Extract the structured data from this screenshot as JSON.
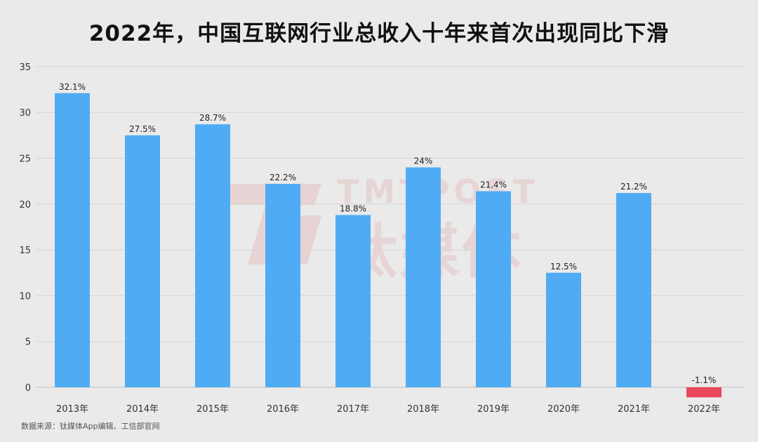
{
  "chart_data": {
    "type": "bar",
    "title": "2022年，中国互联网行业总收入十年来首次出现同比下滑",
    "categories": [
      "2013年",
      "2014年",
      "2015年",
      "2016年",
      "2017年",
      "2018年",
      "2019年",
      "2020年",
      "2021年",
      "2022年"
    ],
    "values": [
      32.1,
      27.5,
      28.7,
      22.2,
      18.8,
      24,
      21.4,
      12.5,
      21.2,
      -1.1
    ],
    "data_labels": [
      "32.1%",
      "27.5%",
      "28.7%",
      "22.2%",
      "18.8%",
      "24%",
      "21.4%",
      "12.5%",
      "21.2%",
      "-1.1%"
    ],
    "xlabel": "",
    "ylabel": "",
    "ylim": [
      0,
      35
    ],
    "yticks": [
      0,
      5,
      10,
      15,
      20,
      25,
      30,
      35
    ],
    "grid": true,
    "colors": {
      "positive": "#4facf4",
      "negative": "#e8485a",
      "grid": "#d4d4d4"
    }
  },
  "source_note": "数据来源：钛媒体App编辑、工信部官网",
  "watermark": {
    "brand_en": "TMTPOST",
    "brand_cn": "钛媒体"
  }
}
